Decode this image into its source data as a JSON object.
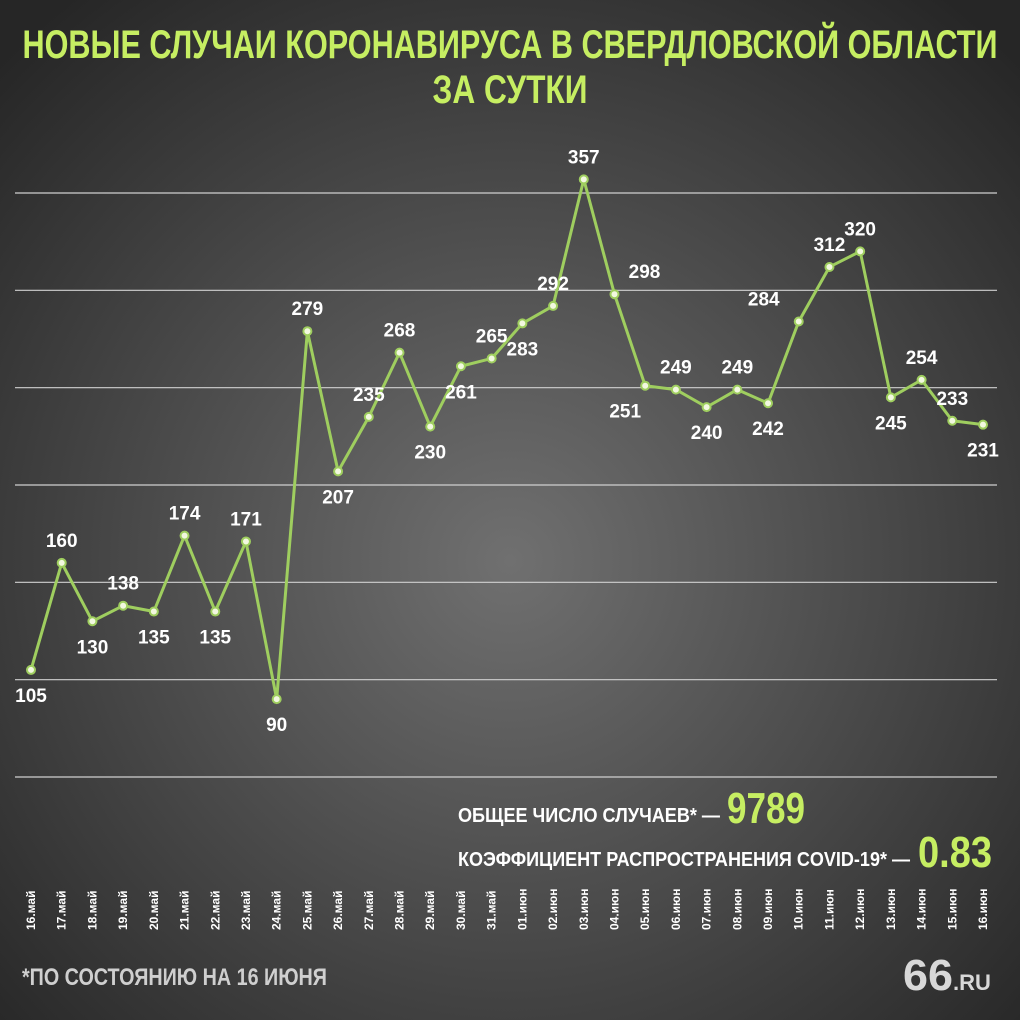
{
  "chart_data": {
    "type": "line",
    "title": "НОВЫЕ СЛУЧАИ КОРОНАВИРУСА В СВЕРДЛОВСКОЙ ОБЛАСТИ",
    "subtitle": "ЗА СУТКИ",
    "categories": [
      "16.май",
      "17.май",
      "18.май",
      "19.май",
      "20.май",
      "21.май",
      "22.май",
      "23.май",
      "24.май",
      "25.май",
      "26.май",
      "27.май",
      "28.май",
      "29.май",
      "30.май",
      "31.май",
      "01.июн",
      "02.июн",
      "03.июн",
      "04.июн",
      "05.июн",
      "06.июн",
      "07.июн",
      "08.июн",
      "09.июн",
      "10.июн",
      "11.июн",
      "12.июн",
      "13.июн",
      "14.июн",
      "15.июн",
      "16.июн"
    ],
    "values": [
      105,
      160,
      130,
      138,
      135,
      174,
      135,
      171,
      90,
      279,
      207,
      235,
      268,
      230,
      261,
      265,
      283,
      292,
      357,
      298,
      251,
      249,
      240,
      249,
      242,
      284,
      312,
      320,
      245,
      254,
      233,
      231
    ],
    "color": "#9fce5f",
    "ylim": [
      50,
      350
    ],
    "yticks": [
      50,
      100,
      150,
      200,
      250,
      300,
      350
    ],
    "grid": true,
    "annotations": {
      "total_label": "ОБЩЕЕ ЧИСЛО СЛУЧАЕВ* —",
      "total_value": "9789",
      "rate_label": "КОЭФФИЦИЕНТ РАСПРОСТРАНЕНИЯ COVID-19* —",
      "rate_value": "0.83",
      "footnote": "*ПО СОСТОЯНИЮ НА 16 ИЮНЯ",
      "logo_number": "66",
      "logo_suffix": ".RU"
    }
  }
}
